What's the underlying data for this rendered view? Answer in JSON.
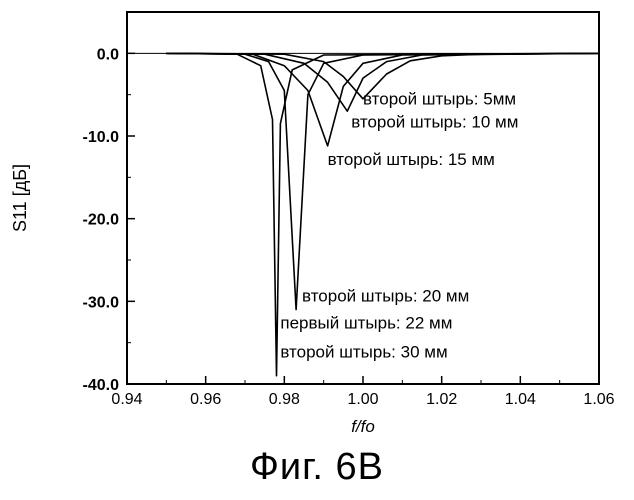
{
  "chart_data": {
    "type": "line",
    "xlabel": "f/fo",
    "ylabel": "S11 [дБ]",
    "xlim": [
      0.94,
      1.06
    ],
    "ylim": [
      -40.0,
      5.0
    ],
    "x_ticks": [
      "0.94",
      "0.96",
      "0.98",
      "1.00",
      "1.02",
      "1.04",
      "1.06"
    ],
    "y_ticks": [
      "0.0",
      "-10.0",
      "-20.0",
      "-30.0",
      "-40.0"
    ],
    "grid": false,
    "series": [
      {
        "name": "второй штырь: 5мм",
        "points": [
          [
            0.95,
            0.0
          ],
          [
            0.98,
            -0.1
          ],
          [
            0.99,
            -1.0
          ],
          [
            0.995,
            -2.8
          ],
          [
            1.0,
            -5.5
          ],
          [
            1.006,
            -2.5
          ],
          [
            1.012,
            -0.9
          ],
          [
            1.02,
            -0.3
          ],
          [
            1.03,
            -0.1
          ],
          [
            1.06,
            0.0
          ]
        ]
      },
      {
        "name": "второй штырь: 10 мм",
        "points": [
          [
            0.95,
            0.0
          ],
          [
            0.975,
            -0.1
          ],
          [
            0.985,
            -1.2
          ],
          [
            0.991,
            -3.5
          ],
          [
            0.996,
            -7.0
          ],
          [
            1.0,
            -3.0
          ],
          [
            1.006,
            -1.0
          ],
          [
            1.015,
            -0.2
          ],
          [
            1.06,
            0.0
          ]
        ]
      },
      {
        "name": "второй штырь: 15 мм",
        "points": [
          [
            0.95,
            0.0
          ],
          [
            0.972,
            -0.1
          ],
          [
            0.98,
            -1.5
          ],
          [
            0.986,
            -4.5
          ],
          [
            0.991,
            -11.2
          ],
          [
            0.995,
            -4.0
          ],
          [
            1.0,
            -1.2
          ],
          [
            1.01,
            -0.2
          ],
          [
            1.06,
            0.0
          ]
        ]
      },
      {
        "name": "второй штырь: 20 мм",
        "points": [
          [
            0.95,
            0.0
          ],
          [
            0.97,
            -0.1
          ],
          [
            0.976,
            -1.0
          ],
          [
            0.98,
            -4.5
          ],
          [
            0.983,
            -31.0
          ],
          [
            0.986,
            -5.0
          ],
          [
            0.99,
            -1.2
          ],
          [
            1.0,
            -0.2
          ],
          [
            1.06,
            0.0
          ]
        ]
      },
      {
        "name": "первый штырь: 22 мм",
        "points": [
          [
            0.95,
            0.0
          ],
          [
            0.968,
            -0.1
          ],
          [
            0.974,
            -1.5
          ],
          [
            0.977,
            -8.0
          ],
          [
            0.978,
            -39.0
          ],
          [
            0.979,
            -8.5
          ],
          [
            0.982,
            -2.0
          ],
          [
            0.99,
            -0.2
          ],
          [
            1.06,
            0.0
          ]
        ]
      }
    ],
    "annotations": [
      {
        "text": "второй штырь: 5мм",
        "x": 1.0,
        "y": -6.2
      },
      {
        "text": "второй штырь: 10 мм",
        "x": 0.997,
        "y": -9.0
      },
      {
        "text": "второй штырь: 15 мм",
        "x": 0.991,
        "y": -13.5
      },
      {
        "text": "второй штырь: 20 мм",
        "x": 0.9845,
        "y": -30.0
      },
      {
        "text": "первый штырь: 22 мм",
        "x": 0.979,
        "y": -33.3
      },
      {
        "text": "второй штырь: 30 мм",
        "x": 0.979,
        "y": -36.8
      }
    ]
  },
  "caption": "Фиг. 6B"
}
